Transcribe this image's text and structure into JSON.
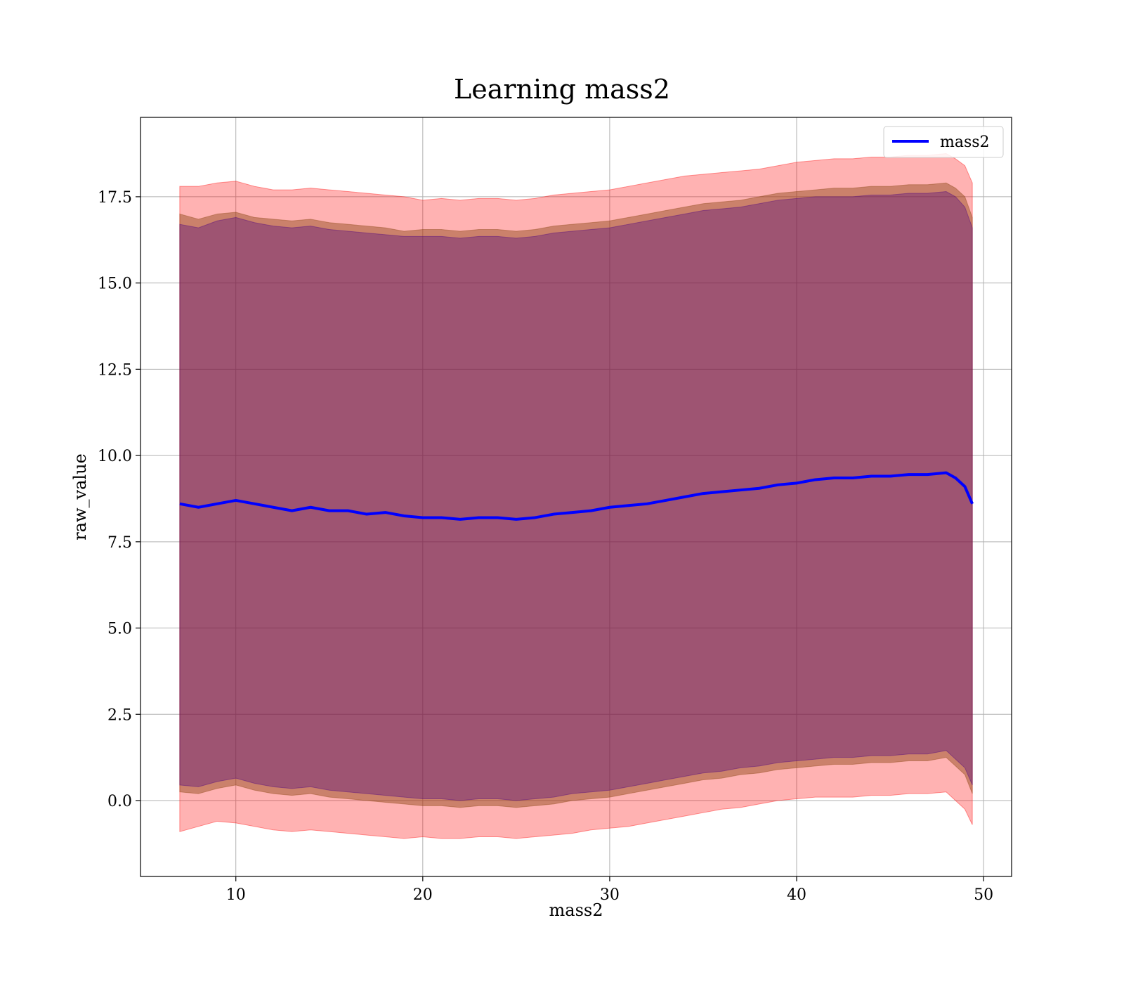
{
  "chart_data": {
    "type": "area",
    "title": "Learning mass2",
    "xlabel": "mass2",
    "ylabel": "raw_value",
    "xlim": [
      4.9,
      51.5
    ],
    "ylim": [
      -2.2,
      19.8
    ],
    "xticks": [
      10,
      20,
      30,
      40,
      50
    ],
    "yticks": [
      0.0,
      2.5,
      5.0,
      7.5,
      10.0,
      12.5,
      15.0,
      17.5
    ],
    "grid": true,
    "legend": {
      "position": "top-right",
      "entries": [
        "mass2"
      ]
    },
    "colors": {
      "line": "#0000ff",
      "outer_band": "#ff0000",
      "middle_band": "#8b4513",
      "inner_band": "#4b0082"
    },
    "x": [
      7.0,
      8.0,
      9.0,
      10.0,
      11.0,
      12.0,
      13.0,
      14.0,
      15.0,
      16.0,
      17.0,
      18.0,
      19.0,
      20.0,
      21.0,
      22.0,
      23.0,
      24.0,
      25.0,
      26.0,
      27.0,
      28.0,
      29.0,
      30.0,
      31.0,
      32.0,
      33.0,
      34.0,
      35.0,
      36.0,
      37.0,
      38.0,
      39.0,
      40.0,
      41.0,
      42.0,
      43.0,
      44.0,
      45.0,
      46.0,
      47.0,
      48.0,
      48.5,
      49.0,
      49.4
    ],
    "series": [
      {
        "name": "mass2",
        "role": "line",
        "values": [
          8.6,
          8.5,
          8.6,
          8.7,
          8.6,
          8.5,
          8.4,
          8.5,
          8.4,
          8.4,
          8.3,
          8.35,
          8.25,
          8.2,
          8.2,
          8.15,
          8.2,
          8.2,
          8.15,
          8.2,
          8.3,
          8.35,
          8.4,
          8.5,
          8.55,
          8.6,
          8.7,
          8.8,
          8.9,
          8.95,
          9.0,
          9.05,
          9.15,
          9.2,
          9.3,
          9.35,
          9.35,
          9.4,
          9.4,
          9.45,
          9.45,
          9.5,
          9.35,
          9.1,
          8.6
        ]
      },
      {
        "role": "outer_band_upper",
        "values": [
          17.8,
          17.8,
          17.9,
          17.95,
          17.8,
          17.7,
          17.7,
          17.75,
          17.7,
          17.65,
          17.6,
          17.55,
          17.5,
          17.4,
          17.45,
          17.4,
          17.45,
          17.45,
          17.4,
          17.45,
          17.55,
          17.6,
          17.65,
          17.7,
          17.8,
          17.9,
          18.0,
          18.1,
          18.15,
          18.2,
          18.25,
          18.3,
          18.4,
          18.5,
          18.55,
          18.6,
          18.6,
          18.65,
          18.65,
          18.7,
          18.7,
          18.75,
          18.6,
          18.4,
          17.9
        ]
      },
      {
        "role": "outer_band_lower",
        "values": [
          -0.9,
          -0.75,
          -0.6,
          -0.65,
          -0.75,
          -0.85,
          -0.9,
          -0.85,
          -0.9,
          -0.95,
          -1.0,
          -1.05,
          -1.1,
          -1.05,
          -1.1,
          -1.1,
          -1.05,
          -1.05,
          -1.1,
          -1.05,
          -1.0,
          -0.95,
          -0.85,
          -0.8,
          -0.75,
          -0.65,
          -0.55,
          -0.45,
          -0.35,
          -0.25,
          -0.2,
          -0.1,
          0.0,
          0.05,
          0.1,
          0.1,
          0.1,
          0.15,
          0.15,
          0.2,
          0.2,
          0.25,
          0.0,
          -0.25,
          -0.7
        ]
      },
      {
        "role": "middle_band_upper",
        "values": [
          17.0,
          16.85,
          17.0,
          17.05,
          16.9,
          16.85,
          16.8,
          16.85,
          16.75,
          16.7,
          16.65,
          16.6,
          16.5,
          16.55,
          16.55,
          16.5,
          16.55,
          16.55,
          16.5,
          16.55,
          16.65,
          16.7,
          16.75,
          16.8,
          16.9,
          17.0,
          17.1,
          17.2,
          17.3,
          17.35,
          17.4,
          17.5,
          17.6,
          17.65,
          17.7,
          17.75,
          17.75,
          17.8,
          17.8,
          17.85,
          17.85,
          17.9,
          17.75,
          17.5,
          16.9
        ]
      },
      {
        "role": "middle_band_lower",
        "values": [
          0.25,
          0.2,
          0.35,
          0.45,
          0.3,
          0.2,
          0.15,
          0.2,
          0.1,
          0.05,
          0.0,
          -0.05,
          -0.1,
          -0.15,
          -0.15,
          -0.2,
          -0.15,
          -0.15,
          -0.2,
          -0.15,
          -0.1,
          0.0,
          0.05,
          0.1,
          0.2,
          0.3,
          0.4,
          0.5,
          0.6,
          0.65,
          0.75,
          0.8,
          0.9,
          0.95,
          1.0,
          1.05,
          1.05,
          1.1,
          1.1,
          1.15,
          1.15,
          1.25,
          1.0,
          0.75,
          0.2
        ]
      },
      {
        "role": "inner_band_upper",
        "values": [
          16.7,
          16.6,
          16.8,
          16.9,
          16.75,
          16.65,
          16.6,
          16.65,
          16.55,
          16.5,
          16.45,
          16.4,
          16.35,
          16.35,
          16.35,
          16.3,
          16.35,
          16.35,
          16.3,
          16.35,
          16.45,
          16.5,
          16.55,
          16.6,
          16.7,
          16.8,
          16.9,
          17.0,
          17.1,
          17.15,
          17.2,
          17.3,
          17.4,
          17.45,
          17.5,
          17.5,
          17.5,
          17.55,
          17.55,
          17.6,
          17.6,
          17.65,
          17.5,
          17.2,
          16.6
        ]
      },
      {
        "role": "inner_band_lower",
        "values": [
          0.45,
          0.4,
          0.55,
          0.65,
          0.5,
          0.4,
          0.35,
          0.4,
          0.3,
          0.25,
          0.2,
          0.15,
          0.1,
          0.05,
          0.05,
          0.0,
          0.05,
          0.05,
          0.0,
          0.05,
          0.1,
          0.2,
          0.25,
          0.3,
          0.4,
          0.5,
          0.6,
          0.7,
          0.8,
          0.85,
          0.95,
          1.0,
          1.1,
          1.15,
          1.2,
          1.25,
          1.25,
          1.3,
          1.3,
          1.35,
          1.35,
          1.45,
          1.2,
          0.95,
          0.45
        ]
      }
    ]
  }
}
